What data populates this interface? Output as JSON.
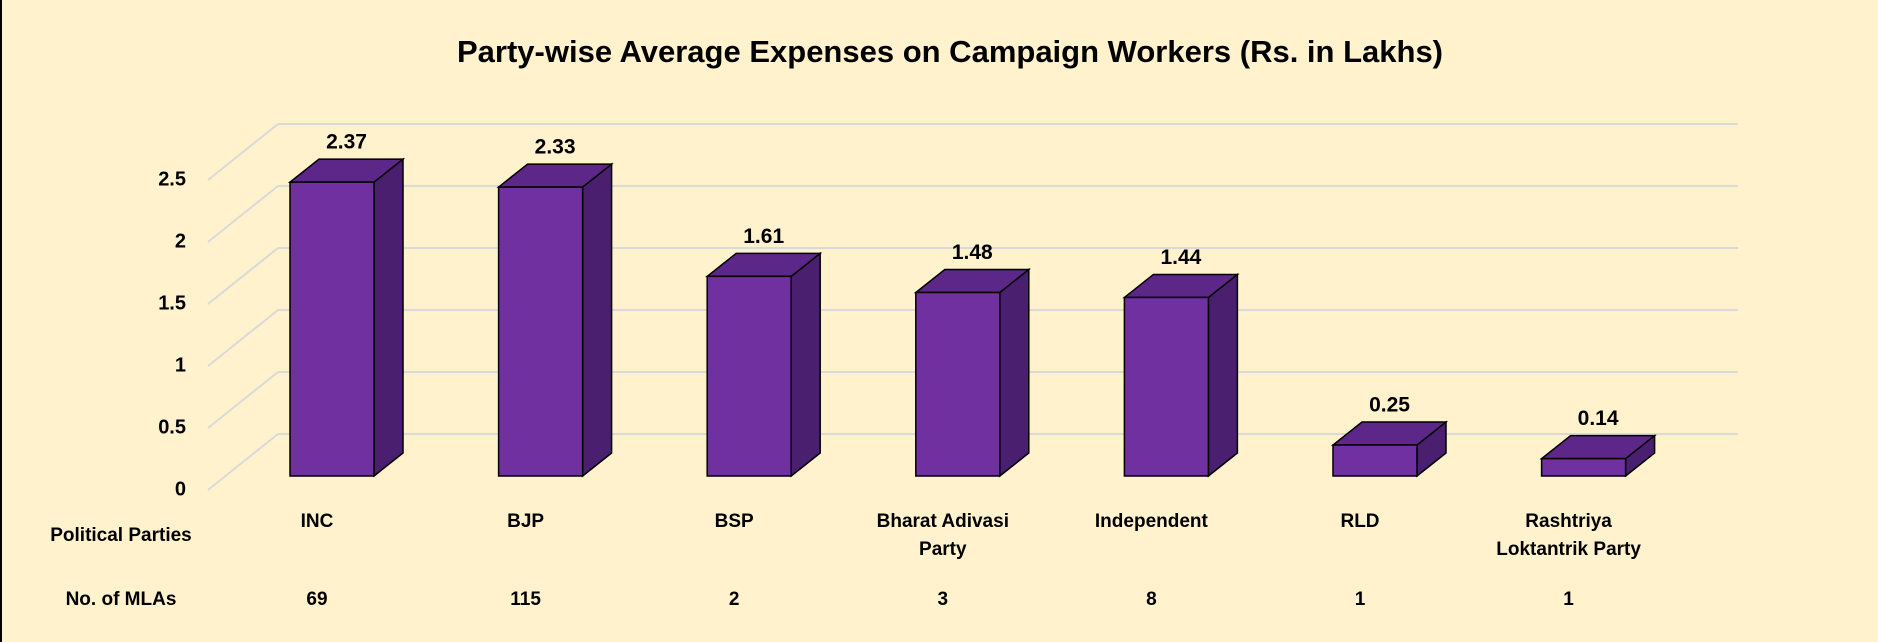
{
  "chart_data": {
    "type": "bar3d",
    "title": "Party-wise Average Expenses on Campaign Workers (Rs. in Lakhs)",
    "category_axis_label": "Political Parties",
    "secondary_row_label": "No. of MLAs",
    "categories": [
      "INC",
      "BJP",
      "BSP",
      "Bharat Adivasi Party",
      "Independent",
      "RLD",
      "Rashtriya Loktantrik Party"
    ],
    "values": [
      2.37,
      2.33,
      1.61,
      1.48,
      1.44,
      0.25,
      0.14
    ],
    "mlas": [
      69,
      115,
      2,
      3,
      8,
      1,
      1
    ],
    "color": "#7030a0",
    "ylim": [
      0,
      2.5
    ],
    "yticks": [
      0,
      0.5,
      1,
      1.5,
      2,
      2.5
    ],
    "grid": true
  }
}
